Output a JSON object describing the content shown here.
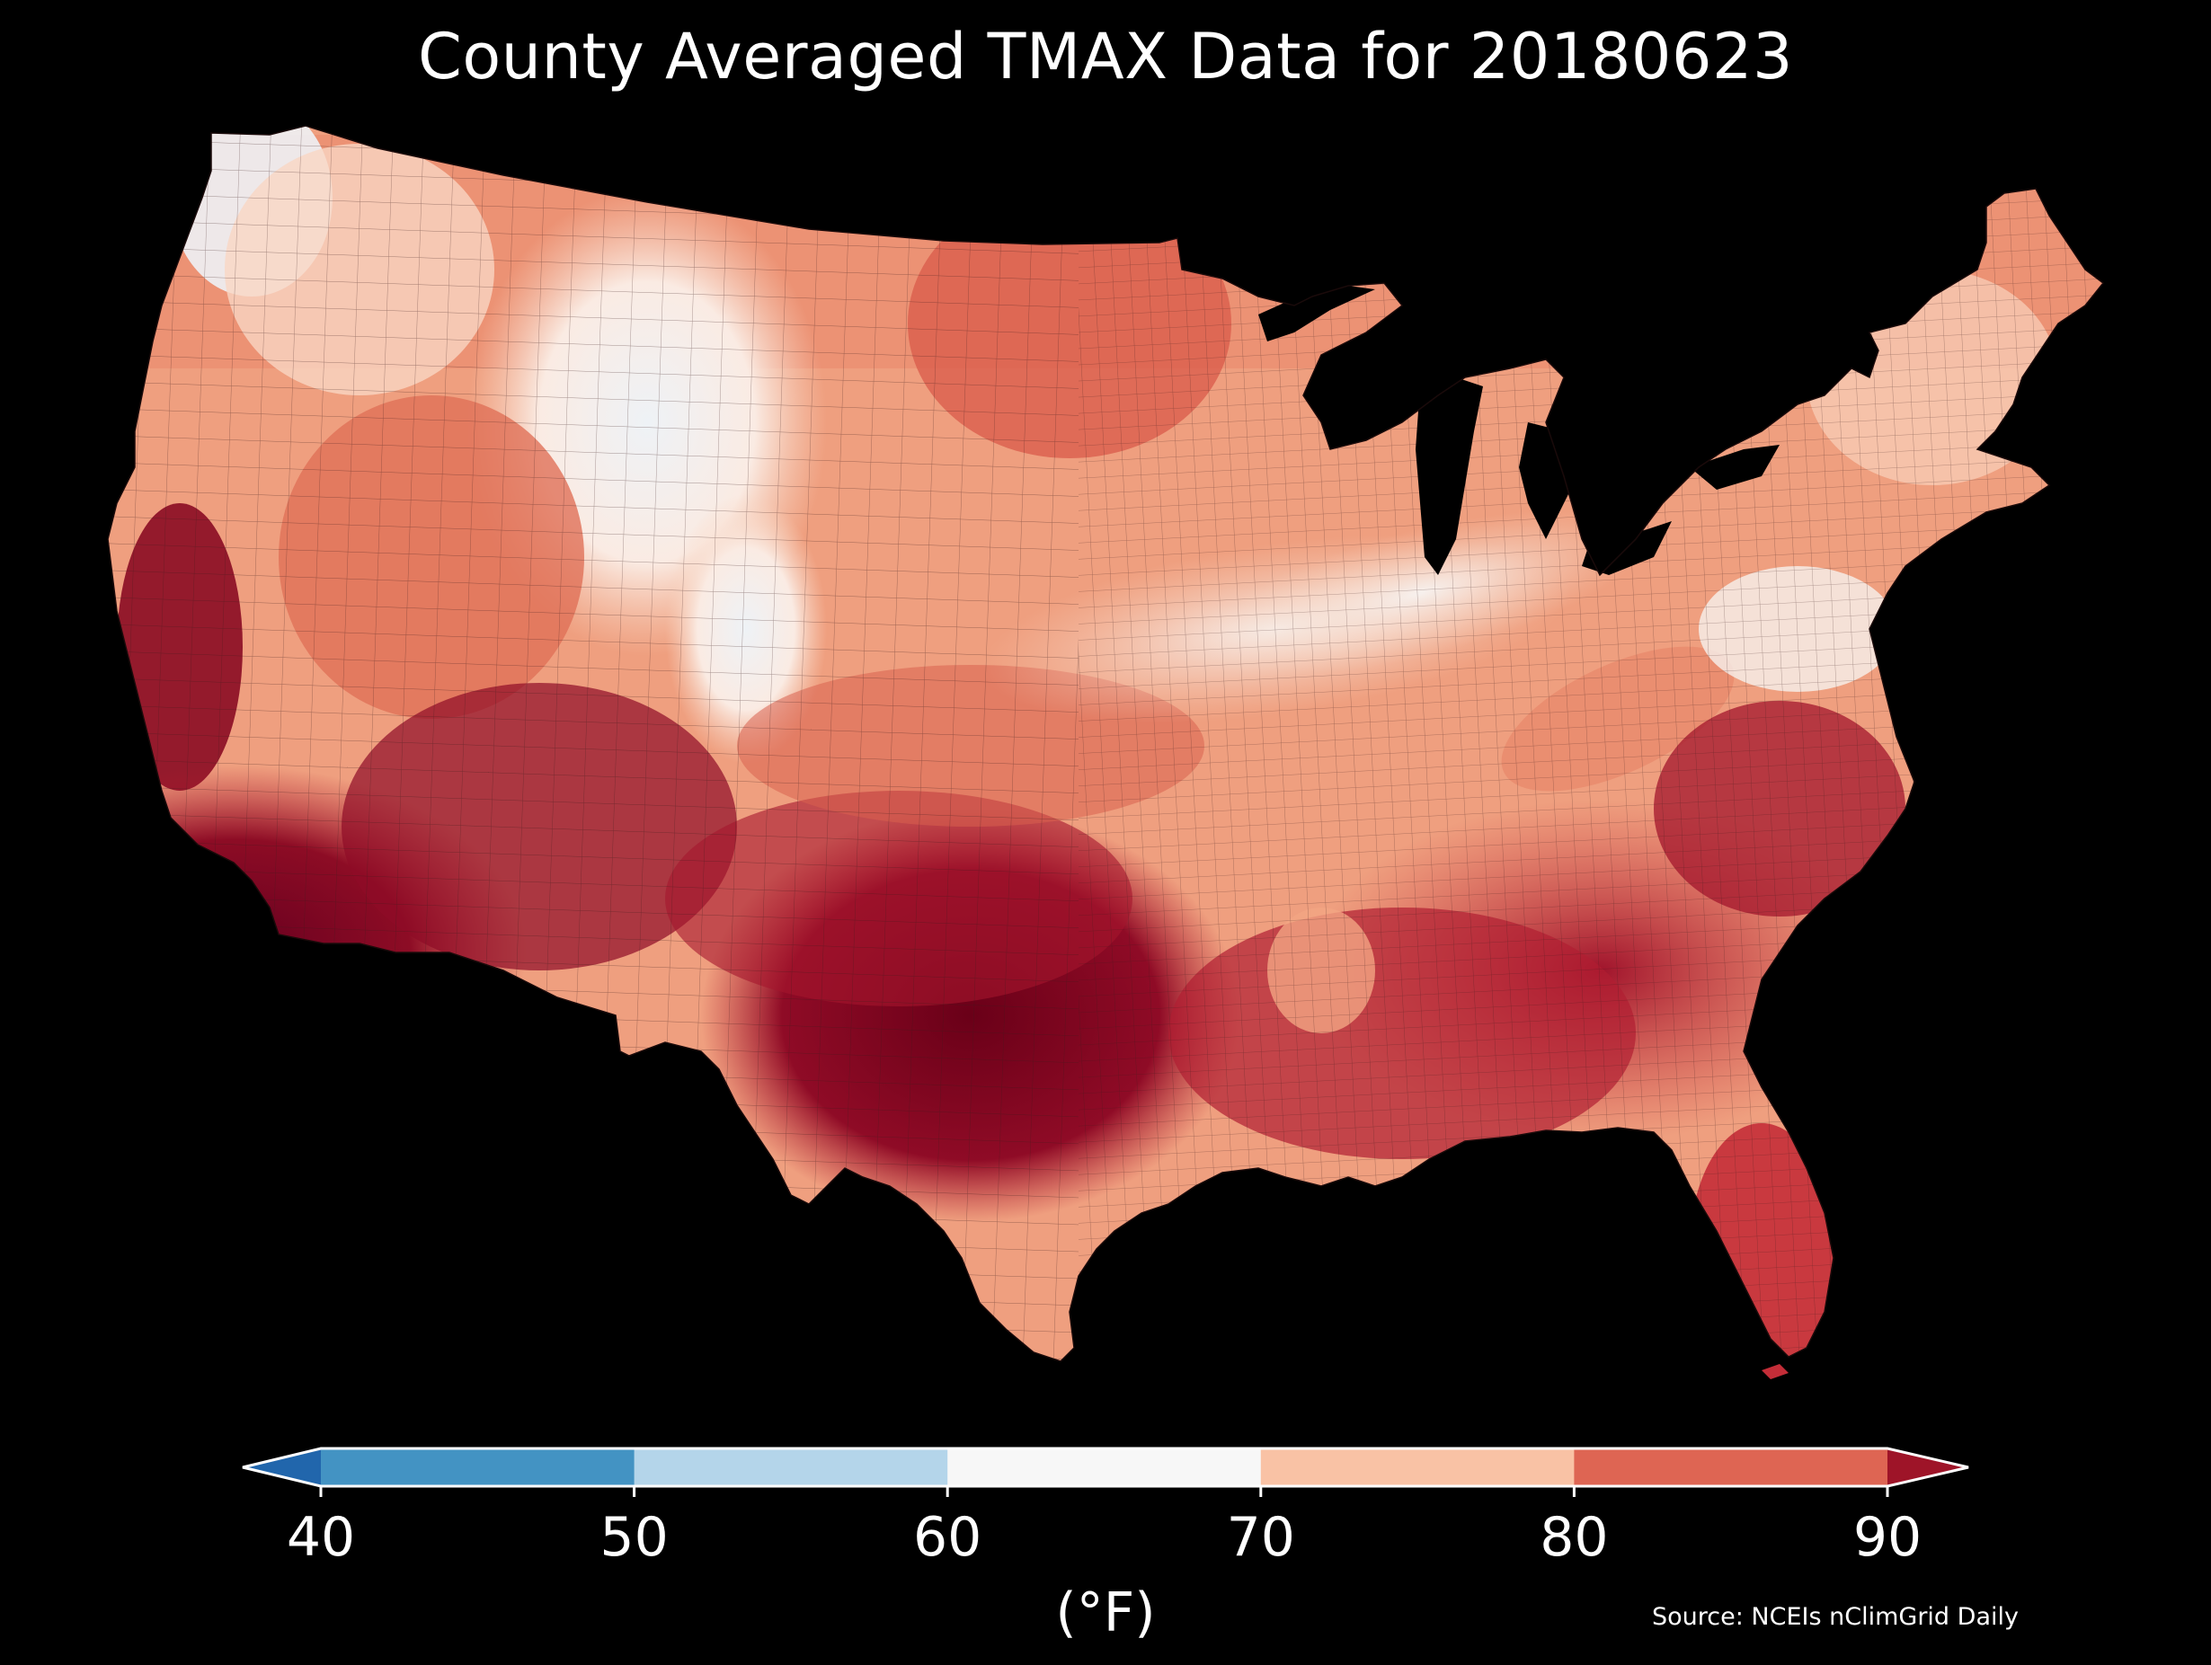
{
  "title": "County Averaged TMAX Data for 20180623",
  "source": "Source: NCEIs nClimGrid Daily",
  "colorbar": {
    "unit_label": "(°F)",
    "ticks": [
      "40",
      "50",
      "60",
      "70",
      "80",
      "90"
    ],
    "bins": [
      {
        "range": "<40",
        "color": "#2166ac"
      },
      {
        "range": "40-50",
        "color": "#4393c3"
      },
      {
        "range": "50-60",
        "color": "#b4d5ea"
      },
      {
        "range": "60-70",
        "color": "#f7f7f7"
      },
      {
        "range": "70-80",
        "color": "#f9c2a5"
      },
      {
        "range": "80-90",
        "color": "#de6553"
      },
      {
        "range": ">90",
        "color": "#9e1428"
      }
    ]
  },
  "map": {
    "background": "#000000",
    "border_color": "#2a1a1a",
    "fill_legend": {
      "cool": "#e8f0f6",
      "neutral": "#f6efe9",
      "warm": "#f2a583",
      "hot": "#d9594a",
      "hottest": "#6a0018"
    }
  }
}
